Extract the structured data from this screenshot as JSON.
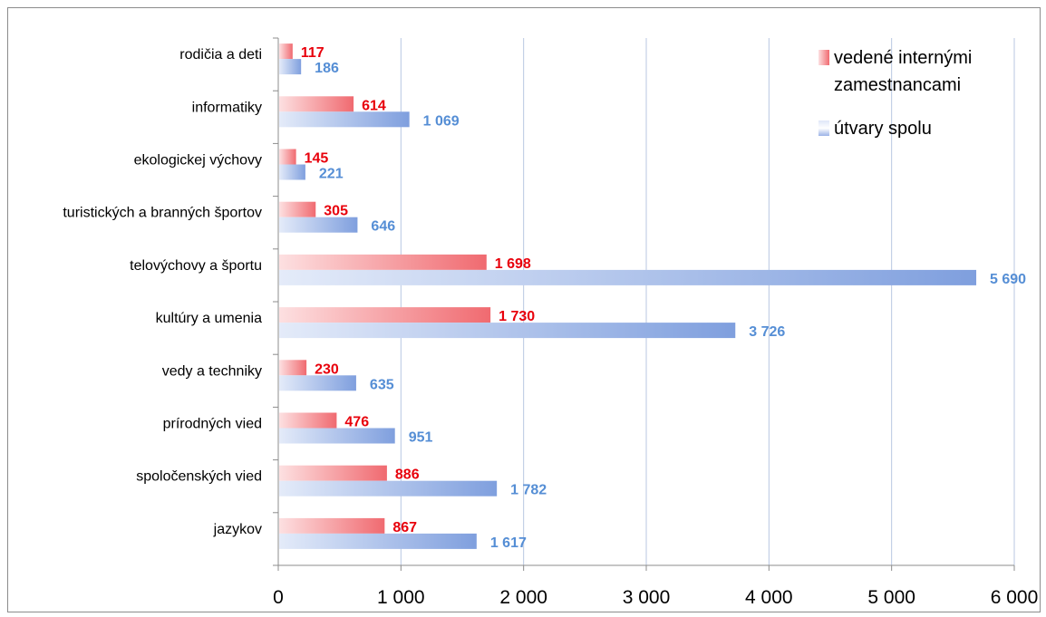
{
  "chart_data": {
    "type": "bar",
    "orientation": "horizontal",
    "categories": [
      "rodičia a deti",
      "informatiky",
      "ekologickej výchovy",
      "turistických a branných športov",
      "telovýchovy a športu",
      "kultúry a umenia",
      "vedy a techniky",
      "prírodných vied",
      "spoločenských vied",
      "jazykov"
    ],
    "series": [
      {
        "name": "vedené internými zamestnancami",
        "values": [
          117,
          614,
          145,
          305,
          1698,
          1730,
          230,
          476,
          886,
          867
        ],
        "labels": [
          "117",
          "614",
          "145",
          "305",
          "1 698",
          "1 730",
          "230",
          "476",
          "886",
          "867"
        ],
        "color": "#f06a70",
        "label_color": "#e8000b"
      },
      {
        "name": "útvary spolu",
        "values": [
          186,
          1069,
          221,
          646,
          5690,
          3726,
          635,
          951,
          1782,
          1617
        ],
        "labels": [
          "186",
          "1 069",
          "221",
          "646",
          "5 690",
          "3 726",
          "635",
          "951",
          "1 782",
          "1 617"
        ],
        "color": "#7f9fde",
        "label_color": "#558ed5"
      }
    ],
    "x_ticks": [
      0,
      1000,
      2000,
      3000,
      4000,
      5000,
      6000
    ],
    "x_tick_labels": [
      "0",
      "1 000",
      "2 000",
      "3 000",
      "4 000",
      "5 000",
      "6 000"
    ],
    "xlim": [
      0,
      6000
    ],
    "grid": "vertical",
    "legend": {
      "position": "top-right",
      "lines": [
        [
          "vedené internými",
          "zamestnancami"
        ],
        [
          "útvary spolu"
        ]
      ]
    }
  }
}
